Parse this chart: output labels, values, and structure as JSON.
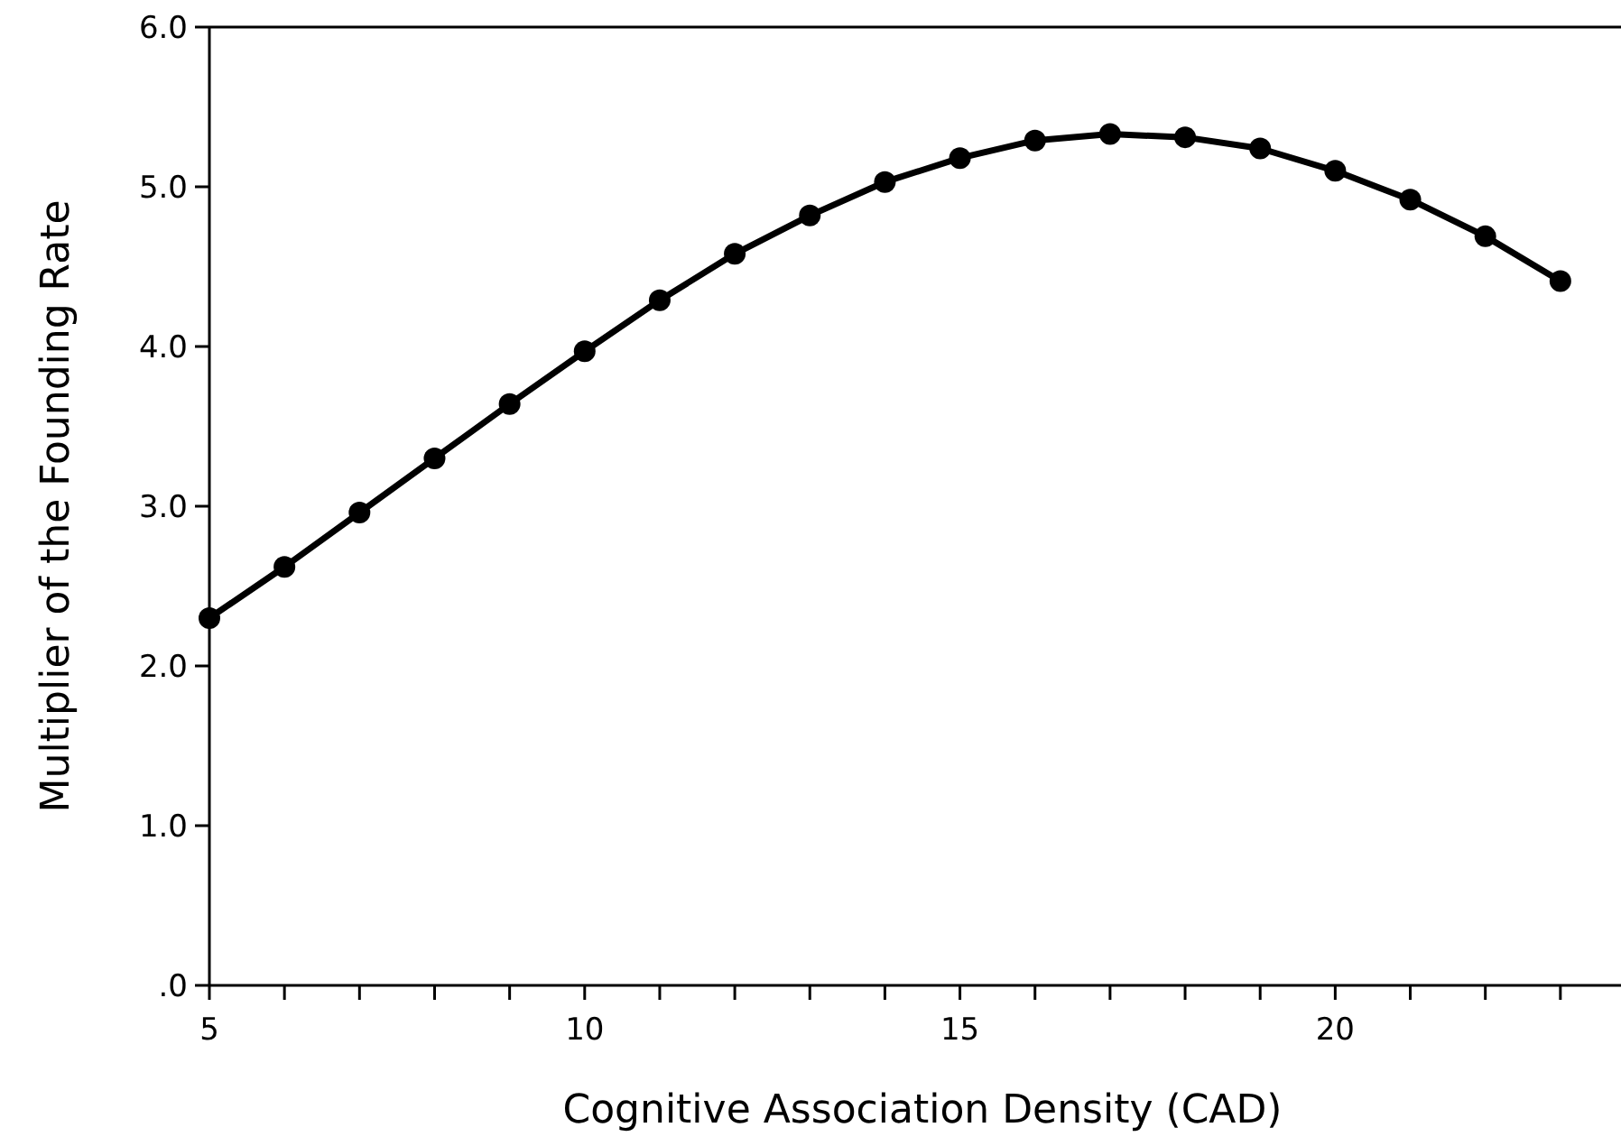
{
  "chart_data": {
    "type": "line",
    "xlabel": "Cognitive Association Density (CAD)",
    "ylabel": "Multiplier of the Founding Rate",
    "x": [
      5,
      6,
      7,
      8,
      9,
      10,
      11,
      12,
      13,
      14,
      15,
      16,
      17,
      18,
      19,
      20,
      21,
      22,
      23
    ],
    "series": [
      {
        "color": "#000000",
        "values": [
          2.3,
          2.62,
          2.96,
          3.3,
          3.64,
          3.97,
          4.29,
          4.58,
          4.82,
          5.03,
          5.18,
          5.29,
          5.33,
          5.31,
          5.24,
          5.1,
          4.92,
          4.69,
          4.41
        ]
      }
    ],
    "xlim": [
      5,
      24
    ],
    "xticks": [
      5,
      {
        "value": 6,
        "label": null
      },
      {
        "value": 7,
        "label": null
      },
      {
        "value": 8,
        "label": null
      },
      {
        "value": 9,
        "label": null
      },
      10,
      {
        "value": 11,
        "label": null
      },
      {
        "value": 12,
        "label": null
      },
      {
        "value": 13,
        "label": null
      },
      {
        "value": 14,
        "label": null
      },
      15,
      {
        "value": 16,
        "label": null
      },
      {
        "value": 17,
        "label": null
      },
      {
        "value": 18,
        "label": null
      },
      {
        "value": 19,
        "label": null
      },
      20,
      {
        "value": 21,
        "label": null
      },
      {
        "value": 22,
        "label": null
      },
      {
        "value": 23,
        "label": null
      }
    ],
    "ylim": [
      0,
      6
    ],
    "yticks": [
      {
        "value": 0,
        "label": ".0"
      },
      {
        "value": 1,
        "label": "1.0"
      },
      {
        "value": 2,
        "label": "2.0"
      },
      {
        "value": 3,
        "label": "3.0"
      },
      {
        "value": 4,
        "label": "4.0"
      },
      {
        "value": 5,
        "label": "5.0"
      },
      {
        "value": 6,
        "label": "6.0"
      }
    ],
    "marker": "circle",
    "line_style": "solid"
  }
}
